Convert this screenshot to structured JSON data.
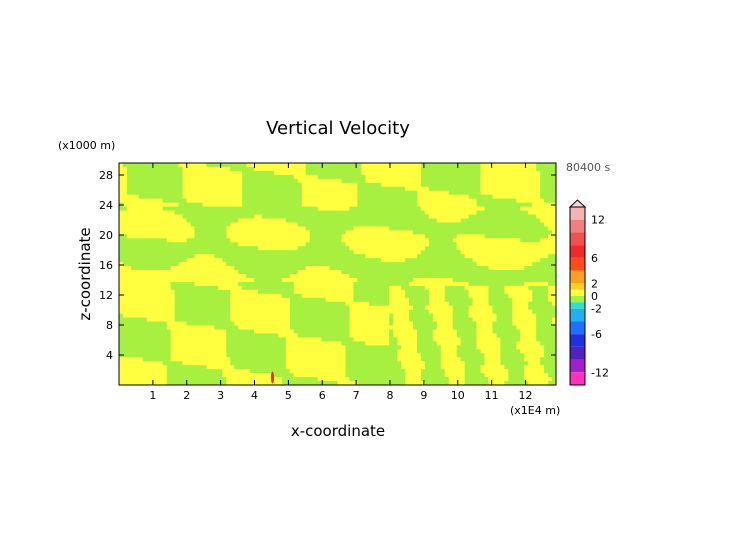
{
  "chart_data": {
    "type": "heatmap",
    "title": "Vertical Velocity",
    "xlabel": "x-coordinate",
    "ylabel": "z-coordinate",
    "x_unit": "(x1E4 m)",
    "y_unit": "(x1000 m)",
    "time_label": "80400 s",
    "xlim": [
      0,
      12.9
    ],
    "ylim": [
      0,
      29.6
    ],
    "x_ticks": [
      1,
      2,
      3,
      4,
      5,
      6,
      7,
      8,
      9,
      10,
      11,
      12
    ],
    "y_ticks": [
      4,
      8,
      12,
      16,
      20,
      24,
      28
    ],
    "colorbar": {
      "labels": [
        12,
        6,
        2,
        0,
        -2,
        -6,
        -12
      ],
      "levels": [
        {
          "min": 12,
          "max": 14,
          "color": "#f4b4b4"
        },
        {
          "min": 10,
          "max": 12,
          "color": "#f08080"
        },
        {
          "min": 8,
          "max": 10,
          "color": "#f05050"
        },
        {
          "min": 6,
          "max": 8,
          "color": "#ee2a2a"
        },
        {
          "min": 4,
          "max": 6,
          "color": "#ff4a1a"
        },
        {
          "min": 2,
          "max": 4,
          "color": "#ffa020"
        },
        {
          "min": 1,
          "max": 2,
          "color": "#ffd020"
        },
        {
          "min": 0,
          "max": 1,
          "color": "#ffff40"
        },
        {
          "min": -1,
          "max": 0,
          "color": "#a8f040"
        },
        {
          "min": -2,
          "max": -1,
          "color": "#30e0c0"
        },
        {
          "min": -4,
          "max": -2,
          "color": "#20b0f0"
        },
        {
          "min": -6,
          "max": -4,
          "color": "#2070ff"
        },
        {
          "min": -8,
          "max": -6,
          "color": "#2030e0"
        },
        {
          "min": -10,
          "max": -8,
          "color": "#5020c0"
        },
        {
          "min": -12,
          "max": -10,
          "color": "#a020d0"
        },
        {
          "min": -14,
          "max": -12,
          "color": "#ff30c0"
        }
      ]
    },
    "field_colors": {
      "positive": "#ffff40",
      "negative": "#a8f040",
      "strong_positive": "#ee2a2a"
    }
  }
}
